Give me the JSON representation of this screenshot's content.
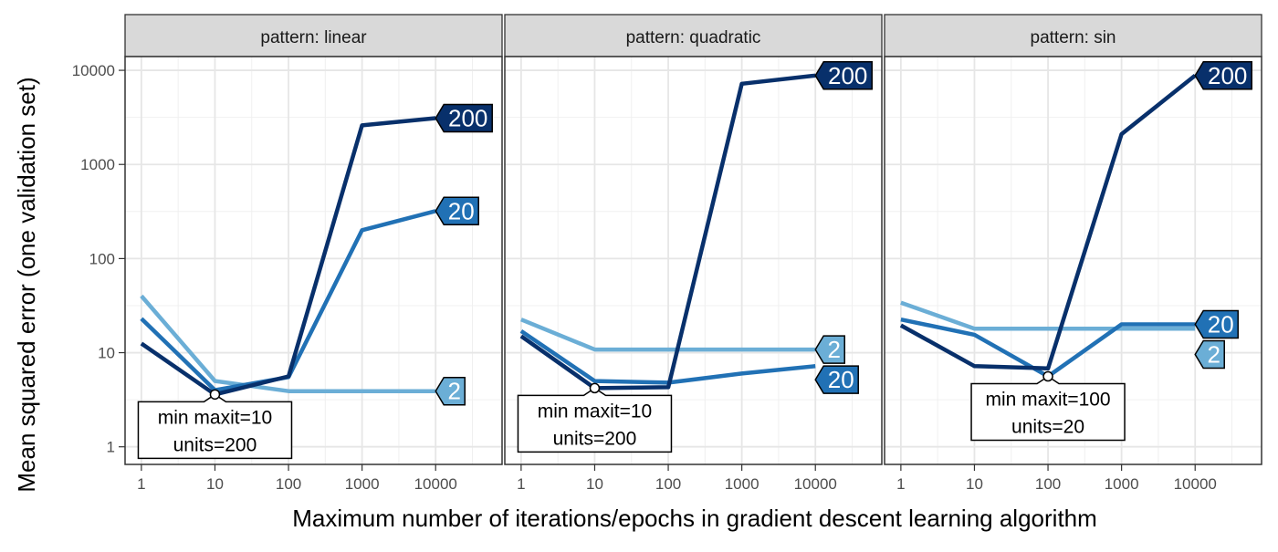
{
  "chart_data": {
    "type": "line",
    "xlabel": "Maximum number of iterations/epochs in gradient descent learning algorithm",
    "ylabel": "Mean squared error (one validation set)",
    "x_scale": "log10",
    "y_scale": "log10",
    "x": [
      1,
      10,
      100,
      1000,
      10000
    ],
    "x_ticks": [
      "1",
      "10",
      "100",
      "1000",
      "10000"
    ],
    "y_ticks": [
      "1",
      "10",
      "100",
      "1000",
      "10000"
    ],
    "xlim": [
      0.6,
      80000
    ],
    "ylim": [
      0.65,
      14000
    ],
    "grid": true,
    "legend": "direct labels at line ends",
    "colors": {
      "2": "#6baed6",
      "20": "#2171b5",
      "200": "#08306b"
    },
    "panels": [
      {
        "strip": "pattern: linear",
        "series": [
          {
            "name": "2",
            "values": [
              40,
              5,
              3.9,
              3.9,
              3.9
            ]
          },
          {
            "name": "20",
            "values": [
              23,
              4,
              5.5,
              200,
              320
            ]
          },
          {
            "name": "200",
            "values": [
              12.5,
              3.6,
              5.6,
              2600,
              3100
            ]
          }
        ],
        "annotation": {
          "x": 10,
          "y": 3.6,
          "lines": [
            "min maxit=10",
            "units=200"
          ]
        }
      },
      {
        "strip": "pattern: quadratic",
        "series": [
          {
            "name": "2",
            "values": [
              22.5,
              10.8,
              10.8,
              10.8,
              10.8
            ]
          },
          {
            "name": "20",
            "values": [
              17,
              5,
              4.8,
              6,
              7.2
            ]
          },
          {
            "name": "200",
            "values": [
              15,
              4.2,
              4.3,
              7200,
              8800
            ]
          }
        ],
        "annotation": {
          "x": 10,
          "y": 4.2,
          "lines": [
            "min maxit=10",
            "units=200"
          ]
        }
      },
      {
        "strip": "pattern: sin",
        "series": [
          {
            "name": "2",
            "values": [
              34,
              18,
              18,
              18,
              18
            ]
          },
          {
            "name": "20",
            "values": [
              22.5,
              15.5,
              5.6,
              20,
              20
            ]
          },
          {
            "name": "200",
            "values": [
              19.5,
              7.2,
              6.8,
              2100,
              8800
            ]
          }
        ],
        "annotation": {
          "x": 100,
          "y": 5.6,
          "lines": [
            "min maxit=100",
            "units=20"
          ]
        }
      }
    ]
  }
}
